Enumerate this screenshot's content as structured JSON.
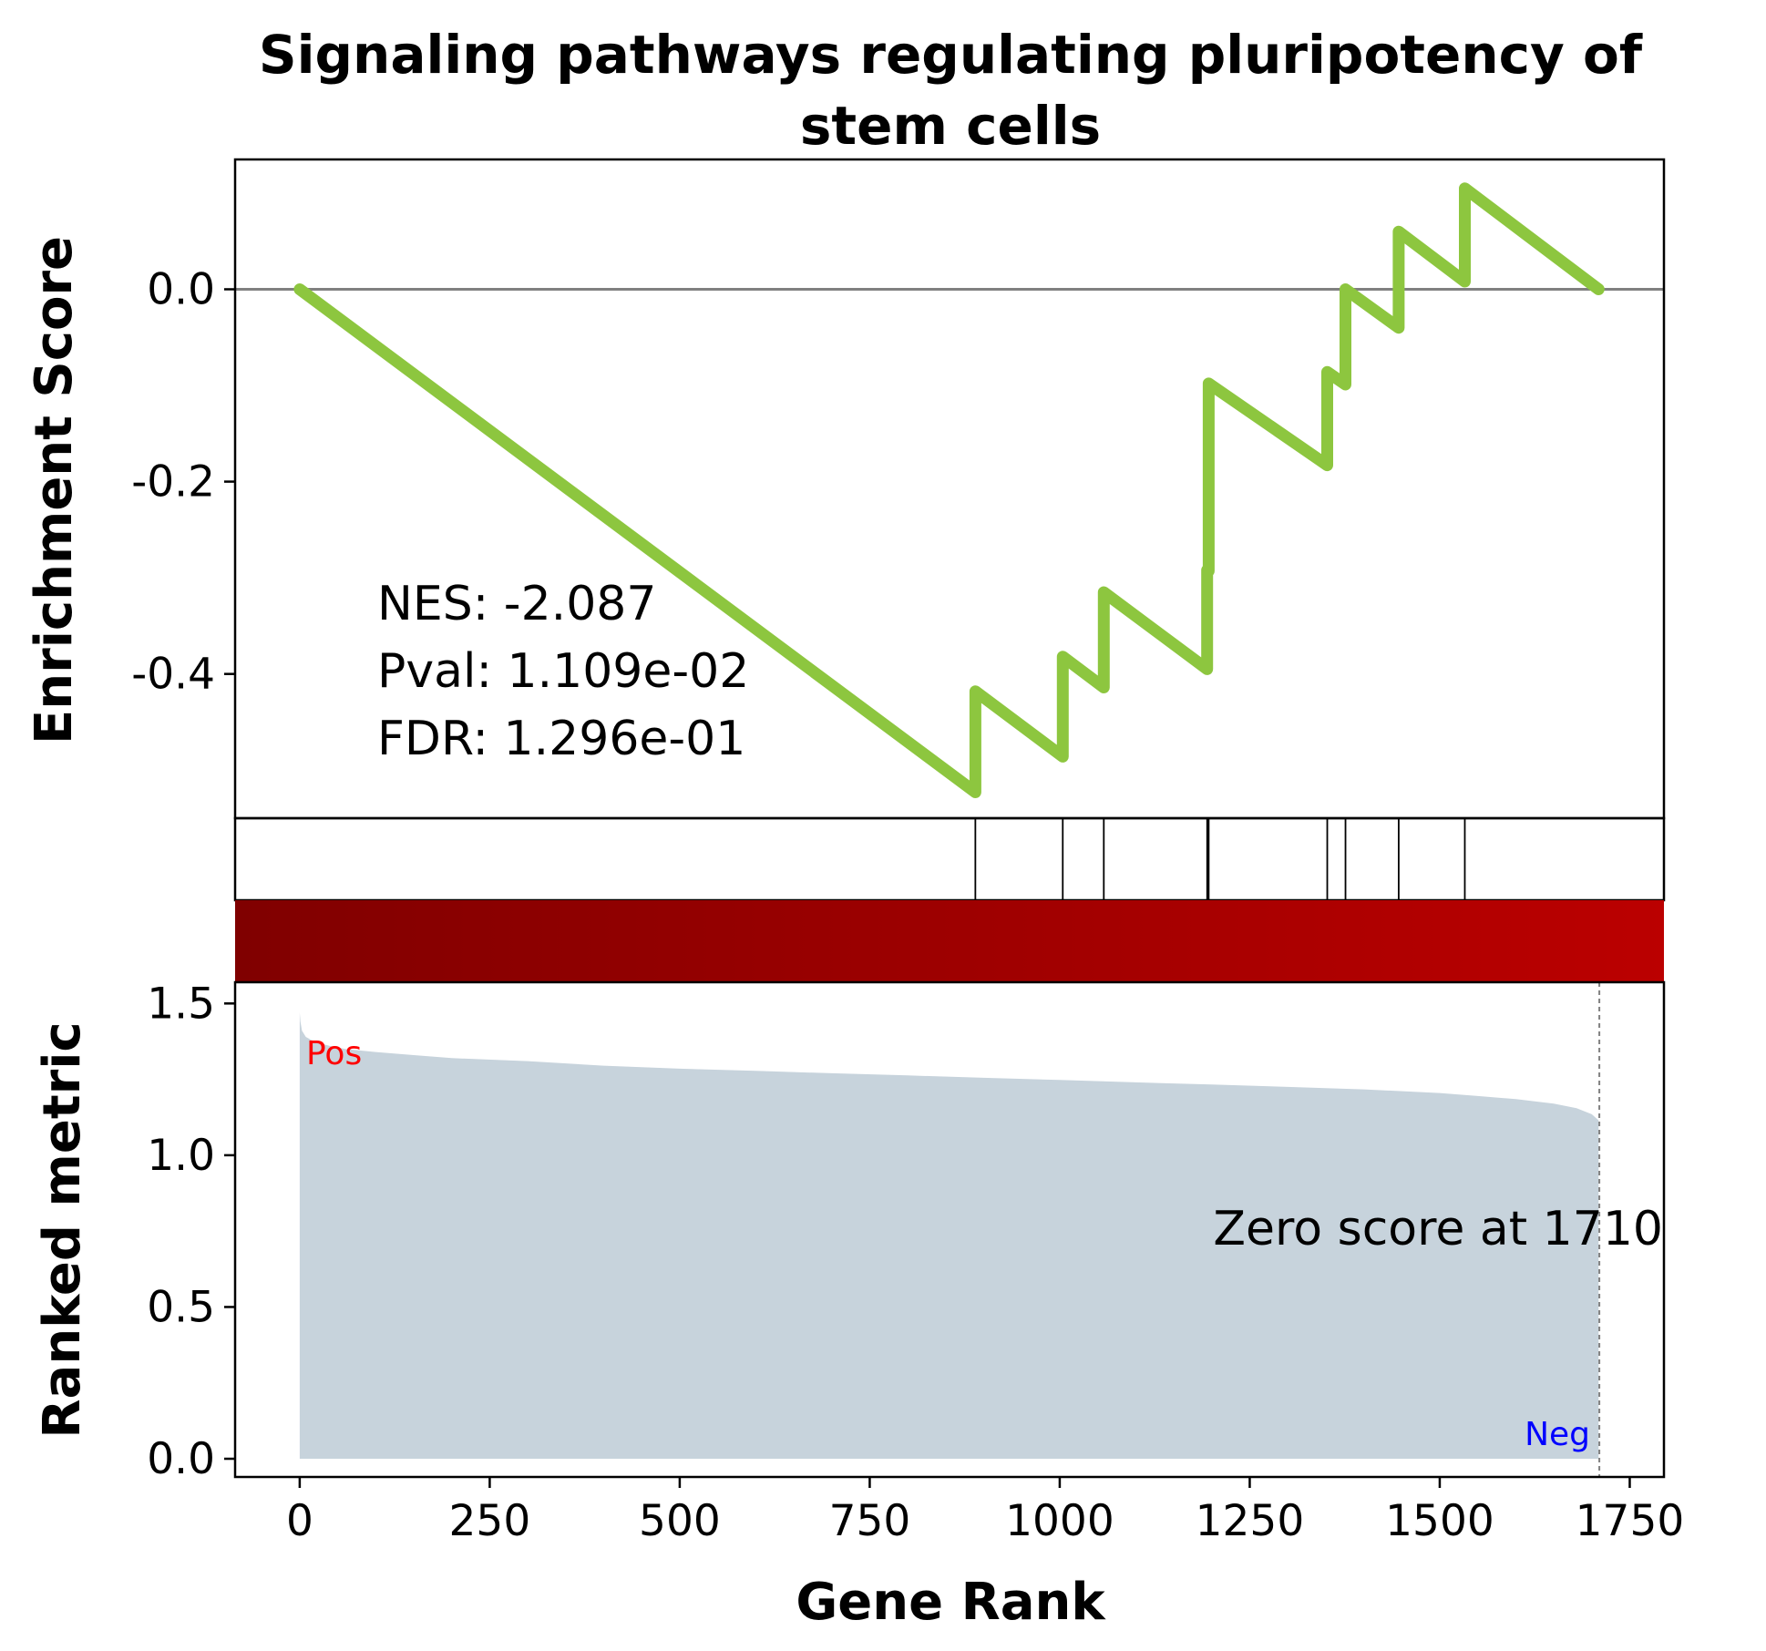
{
  "chart_data": {
    "type": "line",
    "title_lines": [
      "Signaling pathways regulating pluripotency of",
      "stem cells"
    ],
    "xlabel": "Gene Rank",
    "es_ylabel": "Enrichment Score",
    "rm_ylabel": "Ranked metric",
    "xlim": [
      -85,
      1795
    ],
    "x_ticks": [
      0,
      250,
      500,
      750,
      1000,
      1250,
      1500,
      1750
    ],
    "x_tick_labels": [
      "0",
      "250",
      "500",
      "750",
      "1000",
      "1250",
      "1500",
      "1750"
    ],
    "es_ylim": [
      -0.55,
      0.135
    ],
    "es_ticks": [
      0.0,
      -0.2,
      -0.4
    ],
    "es_tick_labels": [
      "0.0",
      "-0.2",
      "-0.4"
    ],
    "rm_ylim": [
      -0.06,
      1.57
    ],
    "rm_ticks": [
      0.0,
      0.5,
      1.0,
      1.5
    ],
    "rm_tick_labels": [
      "0.0",
      "0.5",
      "1.0",
      "1.5"
    ],
    "series": [
      {
        "color": "#8dc63f",
        "x": [
          0,
          889,
          889,
          1004,
          1004,
          1058,
          1058,
          1194,
          1194,
          1196,
          1196,
          1352,
          1352,
          1376,
          1376,
          1446,
          1446,
          1533,
          1533,
          1709
        ],
        "y": [
          0.0,
          -0.523,
          -0.418,
          -0.486,
          -0.382,
          -0.414,
          -0.315,
          -0.395,
          -0.292,
          -0.293,
          -0.098,
          -0.183,
          -0.086,
          -0.099,
          0.0,
          -0.04,
          0.06,
          0.008,
          0.105,
          0.0
        ]
      }
    ],
    "hit_ranks": [
      889,
      1004,
      1058,
      1194,
      1196,
      1352,
      1376,
      1446,
      1533
    ],
    "ranked_metric": {
      "color": "#c7d3dc",
      "x": [
        0,
        1,
        3,
        8,
        15,
        25,
        40,
        60,
        100,
        150,
        200,
        300,
        400,
        500,
        600,
        700,
        800,
        900,
        1000,
        1100,
        1200,
        1300,
        1400,
        1500,
        1550,
        1600,
        1650,
        1680,
        1700,
        1709
      ],
      "y": [
        1.47,
        1.44,
        1.41,
        1.39,
        1.38,
        1.37,
        1.36,
        1.35,
        1.34,
        1.33,
        1.32,
        1.31,
        1.295,
        1.285,
        1.278,
        1.27,
        1.263,
        1.255,
        1.248,
        1.24,
        1.233,
        1.225,
        1.217,
        1.205,
        1.195,
        1.185,
        1.17,
        1.155,
        1.135,
        1.115
      ]
    },
    "zero_score_rank": 1710,
    "zero_score_label": "Zero score at 1710",
    "pos_label": "Pos",
    "neg_label": "Neg",
    "stats": [
      "NES: -2.087",
      "Pval: 1.109e-02",
      "FDR: 1.296e-01"
    ],
    "heatmap_colors": [
      "#800000",
      "#bb0000"
    ],
    "grid": false
  }
}
